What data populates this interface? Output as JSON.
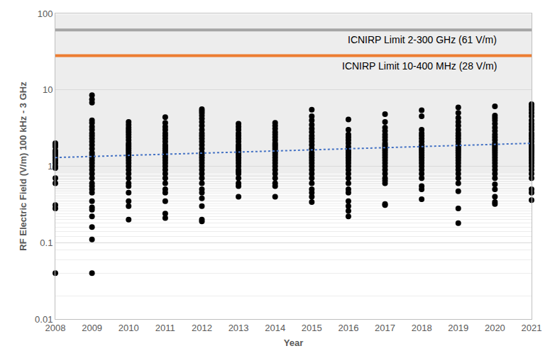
{
  "chart_data": {
    "type": "scatter",
    "x_label": "Year",
    "y_label": "RF Electric Field (V/m) 100 kHz - 3 GHz",
    "log": "y",
    "grid": true,
    "xlim": [
      2008,
      2021
    ],
    "xticks": [
      2008,
      2009,
      2010,
      2011,
      2012,
      2013,
      2014,
      2015,
      2016,
      2017,
      2018,
      2019,
      2020,
      2021
    ],
    "ylim": [
      0.01,
      100
    ],
    "yticks": [
      0.01,
      0.1,
      1,
      10,
      100
    ],
    "reference_lines": [
      {
        "label": "ICNIRP Limit 2-300 GHz (61 V/m)",
        "value": 61,
        "color": "#a5a5a5"
      },
      {
        "label": "ICNIRP Limit 10-400 MHz (28 V/m)",
        "value": 28,
        "color": "#ed7d31"
      }
    ],
    "series": [
      {
        "type": "scatter",
        "color": "#000000",
        "marker": "circle",
        "groups": [
          {
            "x": 2008,
            "values": [
              2.0,
              1.9,
              1.8,
              1.6,
              1.5,
              1.4,
              1.3,
              1.2,
              1.1,
              1.0,
              0.95,
              0.7,
              0.6,
              0.31,
              0.28,
              0.04
            ]
          },
          {
            "x": 2009,
            "values": [
              8.5,
              7.5,
              6.8,
              4.0,
              3.7,
              3.3,
              3.0,
              2.7,
              2.5,
              2.3,
              2.1,
              1.9,
              1.7,
              1.5,
              1.4,
              1.3,
              1.2,
              1.1,
              1.0,
              0.9,
              0.8,
              0.7,
              0.6,
              0.55,
              0.5,
              0.45,
              0.35,
              0.29,
              0.27,
              0.22,
              0.16,
              0.11,
              0.04
            ]
          },
          {
            "x": 2010,
            "values": [
              3.8,
              3.5,
              3.2,
              3.0,
              2.8,
              2.6,
              2.4,
              2.2,
              2.0,
              1.9,
              1.8,
              1.7,
              1.6,
              1.5,
              1.4,
              1.3,
              1.2,
              1.1,
              1.0,
              0.9,
              0.8,
              0.7,
              0.6,
              0.55,
              0.45,
              0.35,
              0.3,
              0.2
            ]
          },
          {
            "x": 2011,
            "values": [
              4.4,
              3.7,
              3.3,
              3.0,
              2.7,
              2.5,
              2.3,
              2.1,
              1.9,
              1.8,
              1.7,
              1.6,
              1.5,
              1.4,
              1.3,
              1.2,
              1.1,
              1.0,
              0.9,
              0.8,
              0.7,
              0.6,
              0.5,
              0.45,
              0.35,
              0.24,
              0.21
            ]
          },
          {
            "x": 2012,
            "values": [
              5.6,
              5.3,
              5.0,
              4.6,
              4.2,
              3.8,
              3.4,
              3.0,
              2.7,
              2.5,
              2.3,
              2.1,
              1.9,
              1.7,
              1.5,
              1.4,
              1.3,
              1.2,
              1.1,
              1.0,
              0.9,
              0.8,
              0.7,
              0.6,
              0.5,
              0.45,
              0.38,
              0.3,
              0.2,
              0.19
            ]
          },
          {
            "x": 2013,
            "values": [
              3.6,
              3.3,
              3.0,
              2.7,
              2.5,
              2.3,
              2.1,
              1.9,
              1.8,
              1.7,
              1.6,
              1.5,
              1.4,
              1.3,
              1.2,
              1.1,
              1.0,
              0.9,
              0.85,
              0.8,
              0.7,
              0.6,
              0.55,
              0.4
            ]
          },
          {
            "x": 2014,
            "values": [
              3.7,
              3.4,
              3.1,
              2.8,
              2.6,
              2.4,
              2.2,
              2.0,
              1.9,
              1.8,
              1.7,
              1.6,
              1.5,
              1.4,
              1.3,
              1.2,
              1.1,
              1.0,
              0.9,
              0.8,
              0.7,
              0.6,
              0.55,
              0.4
            ]
          },
          {
            "x": 2015,
            "values": [
              5.5,
              4.5,
              4.0,
              3.5,
              3.1,
              2.8,
              2.5,
              2.3,
              2.1,
              1.9,
              1.7,
              1.5,
              1.4,
              1.3,
              1.2,
              1.1,
              1.0,
              0.9,
              0.8,
              0.7,
              0.6,
              0.5,
              0.45,
              0.4,
              0.34
            ]
          },
          {
            "x": 2016,
            "values": [
              4.1,
              3.0,
              2.6,
              2.4,
              2.2,
              2.0,
              1.8,
              1.6,
              1.5,
              1.4,
              1.3,
              1.2,
              1.1,
              1.0,
              0.9,
              0.8,
              0.7,
              0.6,
              0.5,
              0.45,
              0.35,
              0.3,
              0.26,
              0.22
            ]
          },
          {
            "x": 2017,
            "values": [
              4.8,
              3.8,
              3.2,
              2.9,
              2.6,
              2.4,
              2.2,
              2.0,
              1.9,
              1.8,
              1.7,
              1.6,
              1.5,
              1.4,
              1.3,
              1.2,
              1.1,
              1.0,
              0.9,
              0.8,
              0.7,
              0.65,
              0.6,
              0.32,
              0.31
            ]
          },
          {
            "x": 2018,
            "values": [
              5.4,
              4.5,
              3.0,
              2.7,
              2.5,
              2.3,
              2.1,
              1.9,
              1.8,
              1.7,
              1.6,
              1.5,
              1.4,
              1.3,
              1.2,
              1.1,
              1.0,
              0.9,
              0.8,
              0.7,
              0.55,
              0.5,
              0.37
            ]
          },
          {
            "x": 2019,
            "values": [
              5.9,
              5.0,
              4.3,
              3.8,
              3.4,
              3.0,
              2.7,
              2.5,
              2.3,
              2.1,
              1.9,
              1.8,
              1.7,
              1.6,
              1.5,
              1.4,
              1.3,
              1.2,
              1.1,
              1.0,
              0.9,
              0.8,
              0.7,
              0.6,
              0.47,
              0.28,
              0.18
            ]
          },
          {
            "x": 2020,
            "values": [
              6.1,
              4.6,
              4.3,
              4.0,
              3.6,
              3.2,
              2.9,
              2.6,
              2.4,
              2.2,
              2.0,
              1.9,
              1.8,
              1.7,
              1.6,
              1.5,
              1.4,
              1.3,
              1.2,
              1.1,
              1.0,
              0.9,
              0.8,
              0.7,
              0.58,
              0.5,
              0.4,
              0.34,
              0.32
            ]
          },
          {
            "x": 2021,
            "values": [
              6.5,
              6.0,
              5.5,
              5.0,
              4.5,
              4.0,
              3.6,
              3.3,
              3.0,
              2.7,
              2.5,
              2.3,
              2.1,
              1.9,
              1.8,
              1.7,
              1.6,
              1.5,
              1.4,
              1.3,
              1.2,
              1.1,
              1.0,
              0.9,
              0.8,
              0.7,
              0.5,
              0.45,
              0.36
            ]
          }
        ]
      },
      {
        "type": "line",
        "color": "#4472c4",
        "line_style": "dotted",
        "x": [
          2008,
          2021
        ],
        "values": [
          1.3,
          2.0
        ]
      }
    ]
  }
}
